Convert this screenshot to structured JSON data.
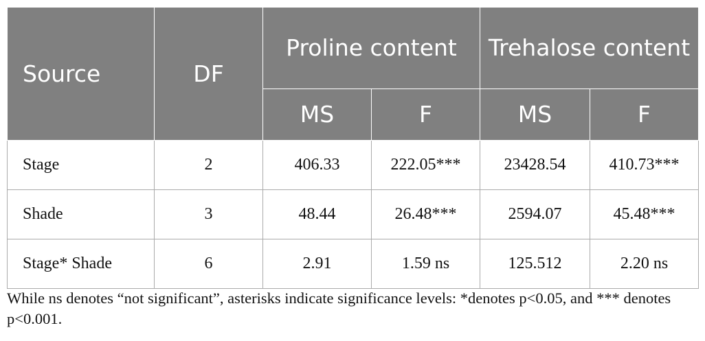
{
  "table": {
    "header": {
      "source": "Source",
      "df": "DF",
      "groups": [
        "Proline content",
        "Trehalose content"
      ],
      "subheaders": [
        "MS",
        "F",
        "MS",
        "F"
      ]
    },
    "rows": [
      [
        "Stage",
        "2",
        "406.33",
        "222.05***",
        "23428.54",
        "410.73***"
      ],
      [
        "Shade",
        "3",
        "48.44",
        "26.48***",
        "2594.07",
        "45.48***"
      ],
      [
        "Stage* Shade",
        "6",
        "2.91",
        "1.59 ns",
        "125.512",
        "2.20 ns"
      ]
    ]
  },
  "footnote": "While ns denotes “not significant”, asterisks indicate significance levels: *denotes p<0.05, and *** denotes p<0.001."
}
